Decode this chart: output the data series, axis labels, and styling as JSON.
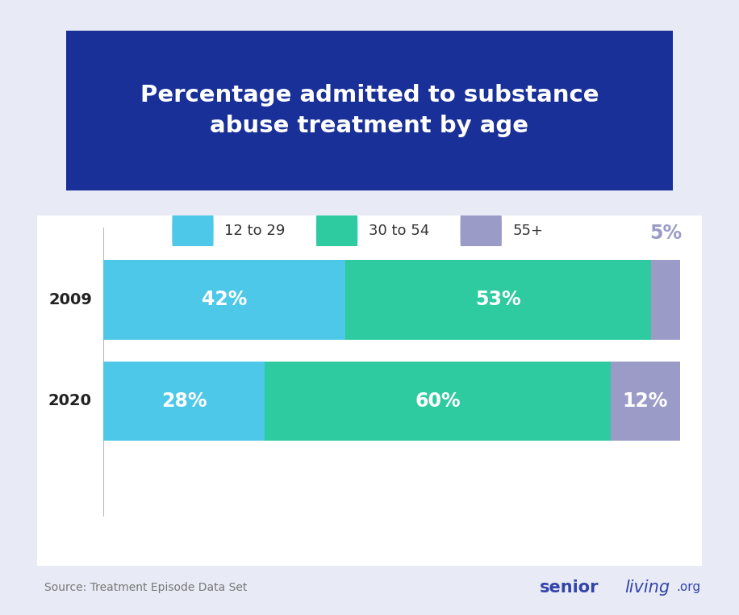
{
  "title": "Percentage admitted to substance\nabuse treatment by age",
  "categories": [
    "2009",
    "2020"
  ],
  "series_names": [
    "12 to 29",
    "30 to 54",
    "55+"
  ],
  "series_values": {
    "12 to 29": [
      42,
      28
    ],
    "30 to 54": [
      53,
      60
    ],
    "55+": [
      5,
      12
    ]
  },
  "colors": {
    "12 to 29": "#4DC8E8",
    "30 to 54": "#2ECBA1",
    "55+": "#9B9BC8"
  },
  "background_outer": "#E8EBF5",
  "background_inner": "#FFFFFF",
  "title_bg": "#1A3099",
  "title_color": "#FFFFFF",
  "source_text": "Source: Treatment Episode Data Set",
  "title_fontsize": 21,
  "label_fontsize": 17,
  "legend_fontsize": 13,
  "source_fontsize": 10,
  "tick_fontsize": 14,
  "brand_color": "#3344AA"
}
